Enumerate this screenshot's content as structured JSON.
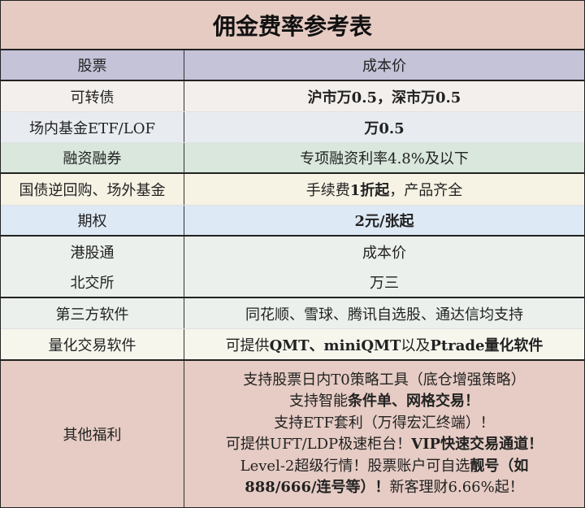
{
  "title": "佣金费率参考表",
  "header": {
    "col1": "股票",
    "col2": "成本价"
  },
  "rows": {
    "kzz": {
      "label": "可转债",
      "value": "沪市万0.5，深市万0.5"
    },
    "etf": {
      "label": "场内基金ETF/LOF",
      "value": "万0.5"
    },
    "rzrq": {
      "label": "融资融券",
      "value": "专项融资利率4.8%及以下"
    },
    "gz": {
      "label": "国债逆回购、场外基金",
      "v1": "手续费",
      "v2": "1折起",
      "v3": "，产品齐全"
    },
    "qq": {
      "label": "期权",
      "value": "2元/张起"
    },
    "ggt": {
      "label": "港股通",
      "value": "成本价"
    },
    "bjs": {
      "label": "北交所",
      "value": "万三"
    },
    "dsf": {
      "label": "第三方软件",
      "value": "同花顺、雪球、腾讯自选股、通达信均支持"
    },
    "lh": {
      "label": "量化交易软件",
      "v1": "可提供",
      "v2": "QMT、miniQMT",
      "v3": "以及",
      "v4": "Ptrade量化软件"
    },
    "qt": {
      "label": "其他福利",
      "l1": "支持股票日内T0策略工具（底仓增强策略）",
      "l2a": "支持智能",
      "l2b": "条件单、网格交易！",
      "l3": "支持ETF套利（万得宏汇终端）！",
      "l4a": "可提供UFT/LDP极速柜台！",
      "l4b": "VIP快速交易通道！",
      "l5a": "Level-2超级行情！股票账户可自选",
      "l5b": "靓号（如",
      "l6a": "888/666/连号等）！",
      "l6b": "新客理财6.66%起！"
    }
  },
  "colors": {
    "title": "#e6cbc2",
    "header": "#c3c3d7",
    "other": "#e6ccc4"
  }
}
